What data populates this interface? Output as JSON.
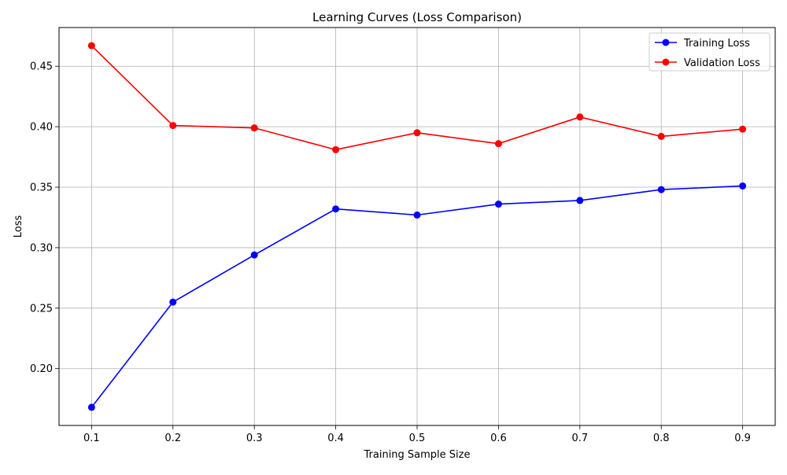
{
  "chart_data": {
    "type": "line",
    "title": "Learning Curves (Loss Comparison)",
    "xlabel": "Training Sample Size",
    "ylabel": "Loss",
    "x": [
      0.1,
      0.2,
      0.3,
      0.4,
      0.5,
      0.6,
      0.7,
      0.8,
      0.9
    ],
    "x_ticks": [
      "0.1",
      "0.2",
      "0.3",
      "0.4",
      "0.5",
      "0.6",
      "0.7",
      "0.8",
      "0.9"
    ],
    "xlim": [
      0.06,
      0.94
    ],
    "ylim": [
      0.153,
      0.482
    ],
    "y_ticks": [
      0.2,
      0.25,
      0.3,
      0.35,
      0.4,
      0.45
    ],
    "y_tick_labels": [
      "0.20",
      "0.25",
      "0.30",
      "0.35",
      "0.40",
      "0.45"
    ],
    "grid": true,
    "legend_position": "top-right",
    "series": [
      {
        "name": "Training Loss",
        "color": "#0000ff",
        "marker": "circle",
        "values": [
          0.168,
          0.255,
          0.294,
          0.332,
          0.327,
          0.336,
          0.339,
          0.348,
          0.351
        ]
      },
      {
        "name": "Validation Loss",
        "color": "#ff0000",
        "marker": "circle",
        "values": [
          0.467,
          0.401,
          0.399,
          0.381,
          0.395,
          0.386,
          0.408,
          0.392,
          0.398
        ]
      }
    ]
  }
}
